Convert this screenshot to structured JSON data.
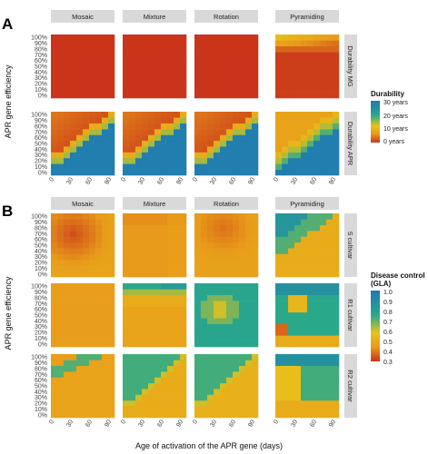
{
  "panels": [
    {
      "letter": "A",
      "columns": [
        "Mosaic",
        "Mixture",
        "Rotation",
        "Pyramiding"
      ],
      "rows": [
        "Durability MG",
        "Durability APR"
      ],
      "y_ticks": [
        "0%",
        "10%",
        "20%",
        "30%",
        "40%",
        "50%",
        "60%",
        "70%",
        "80%",
        "90%",
        "100%"
      ],
      "x_ticks": [
        "0",
        "30",
        "60",
        "90"
      ],
      "legend": {
        "title": "Durability",
        "labels": [
          "30 years",
          "20 years",
          "10 years",
          "0 years"
        ],
        "colors": [
          "#1f77b4",
          "#2aa98a",
          "#e8c21a",
          "#e89a1a",
          "#c9341a"
        ]
      }
    },
    {
      "letter": "B",
      "columns": [
        "Mosaic",
        "Mixture",
        "Rotation",
        "Pyramiding"
      ],
      "rows": [
        "S cultivar",
        "R1 cultivar",
        "R2 cultivar"
      ],
      "y_ticks": [
        "0%",
        "10%",
        "20%",
        "30%",
        "40%",
        "50%",
        "60%",
        "70%",
        "80%",
        "90%",
        "100%"
      ],
      "x_ticks": [
        "0",
        "30",
        "60",
        "90"
      ],
      "legend": {
        "title_line1": "Disease control",
        "title_line2": "(GLA)",
        "labels": [
          "1.0",
          "0.9",
          "0.8",
          "0.7",
          "0.6",
          "0.5",
          "0.4",
          "0.3"
        ],
        "colors": [
          "#1f77b4",
          "#2aa98a",
          "#e8c21a",
          "#e89a1a",
          "#c9341a"
        ]
      }
    }
  ],
  "axes": {
    "y_label": "APR gene efficiency",
    "x_label": "Age of activation of the APR gene (days)"
  },
  "chart_data": [
    {
      "type": "heatmap",
      "panel": "A",
      "x": "age of activation (days)",
      "x_range": [
        0,
        90
      ],
      "y_range": [
        0,
        1
      ],
      "value_range": [
        0,
        30
      ],
      "value_unit": "years",
      "facet_columns": [
        "Mosaic",
        "Mixture",
        "Rotation",
        "Pyramiding"
      ],
      "facet_rows": [
        "Durability MG",
        "Durability APR"
      ],
      "grid_cols": 10,
      "grid_rows": 11,
      "description_values": {
        "Durability MG": {
          "Mosaic": 0,
          "Mixture": 0,
          "Rotation": 0,
          "Pyramiding_top_rows": [
            16,
            12,
            8,
            4
          ]
        },
        "Durability APR": {
          "low_age_high_eff": 4,
          "boundary_slope": "diagonal",
          "high_value": 30
        }
      }
    },
    {
      "type": "heatmap",
      "panel": "B",
      "x": "age of activation (days)",
      "x_range": [
        0,
        90
      ],
      "y_range": [
        0,
        1
      ],
      "value_range": [
        0.3,
        1.0
      ],
      "facet_columns": [
        "Mosaic",
        "Mixture",
        "Rotation",
        "Pyramiding"
      ],
      "facet_rows": [
        "S cultivar",
        "R1 cultivar",
        "R2 cultivar"
      ],
      "grid_cols": 10,
      "grid_rows": 11
    }
  ]
}
